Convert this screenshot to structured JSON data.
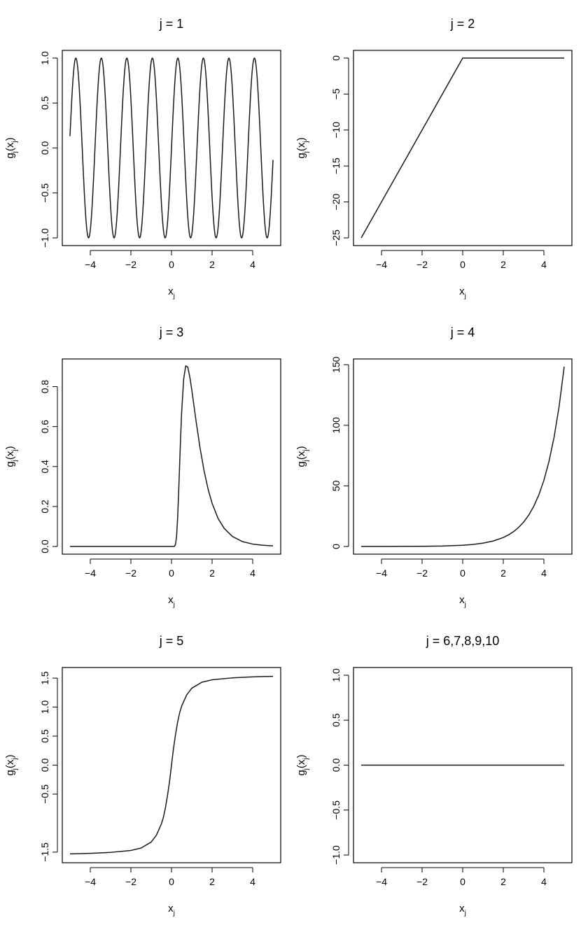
{
  "chart_data": [
    {
      "type": "line",
      "title": "j = 1",
      "xlabel": "xj",
      "ylabel": "gj(xj)",
      "xlabel_parts": {
        "base": "x",
        "sub": "j"
      },
      "ylabel_parts": {
        "base": "g",
        "sub": "j",
        "arg_base": "x",
        "arg_sub": "j"
      },
      "xlim": [
        -5,
        5
      ],
      "ylim": [
        -1,
        1
      ],
      "x_ticks": [
        -4,
        -2,
        0,
        2,
        4
      ],
      "x_tick_labels": [
        "−4",
        "−2",
        "0",
        "2",
        "4"
      ],
      "y_ticks": [
        -1,
        -0.5,
        0,
        0.5,
        1
      ],
      "y_tick_labels": [
        "−1.0",
        "−0.5",
        "0.0",
        "0.5",
        "1.0"
      ],
      "grid": false,
      "series": [
        {
          "x": [
            -5.0,
            -4.9,
            -4.8,
            -4.7,
            -4.6,
            -4.5,
            -4.4,
            -4.3,
            -4.2,
            -4.1,
            -4.0,
            -3.9,
            -3.8,
            -3.7,
            -3.6,
            -3.5,
            -3.4,
            -3.3,
            -3.2,
            -3.1,
            -3.0,
            -2.9,
            -2.8,
            -2.7,
            -2.6,
            -2.5,
            -2.4,
            -2.3,
            -2.2,
            -2.1,
            -2.0,
            -1.9,
            -1.8,
            -1.7,
            -1.6,
            -1.5,
            -1.4,
            -1.3,
            -1.2,
            -1.1,
            -1.0,
            -0.9,
            -0.8,
            -0.7,
            -0.6,
            -0.5,
            -0.4,
            -0.3,
            -0.2,
            -0.1,
            0.0,
            0.1,
            0.2,
            0.3,
            0.4,
            0.5,
            0.6,
            0.7,
            0.8,
            0.9,
            1.0,
            1.1,
            1.2,
            1.3,
            1.4,
            1.5,
            1.6,
            1.7,
            1.8,
            1.9,
            2.0,
            2.1,
            2.2,
            2.3,
            2.4,
            2.5,
            2.6,
            2.7,
            2.8,
            2.9,
            3.0,
            3.1,
            3.2,
            3.3,
            3.4,
            3.5,
            3.6,
            3.7,
            3.8,
            3.9,
            4.0,
            4.1,
            4.2,
            4.3,
            4.4,
            4.5,
            4.6,
            4.7,
            4.8,
            4.9,
            5.0
          ],
          "y": [
            0.132,
            0.58,
            0.909,
            0.99,
            0.794,
            0.392,
            -0.1,
            -0.563,
            -0.898,
            -0.992,
            -0.806,
            -0.426,
            0.074,
            0.549,
            0.891,
            0.993,
            0.813,
            0.414,
            -0.092,
            -0.57,
            -0.903,
            -0.991,
            -0.804,
            -0.406,
            0.101,
            0.579,
            0.907,
            0.99,
            0.797,
            0.398,
            -0.111,
            -0.586,
            -0.911,
            -0.989,
            -0.791,
            -0.389,
            0.12,
            0.594,
            0.915,
            0.988,
            0.785,
            0.381,
            -0.128,
            -0.601,
            -0.919,
            -0.986,
            -0.778,
            -0.373,
            0.137,
            0.608,
            0.0,
            -0.608,
            -0.137,
            0.373,
            0.778,
            0.986,
            0.919,
            0.601,
            0.128,
            -0.381,
            -0.785,
            -0.988,
            -0.915,
            -0.594,
            -0.12,
            0.389,
            0.791,
            0.989,
            0.911,
            0.586,
            0.111,
            -0.398,
            -0.797,
            -0.99,
            -0.907,
            -0.579,
            -0.101,
            0.406,
            0.804,
            0.991,
            0.903,
            0.57,
            0.092,
            -0.414,
            -0.813,
            -0.993,
            -0.891,
            -0.549,
            -0.074,
            0.426,
            0.806,
            0.992,
            0.898,
            0.563,
            0.1,
            -0.392,
            -0.794,
            -0.99,
            -0.909,
            -0.58,
            -0.132
          ]
        }
      ]
    },
    {
      "type": "line",
      "title": "j = 2",
      "xlabel": "xj",
      "ylabel": "gj(xj)",
      "xlabel_parts": {
        "base": "x",
        "sub": "j"
      },
      "ylabel_parts": {
        "base": "g",
        "sub": "j",
        "arg_base": "x",
        "arg_sub": "j"
      },
      "xlim": [
        -5,
        5
      ],
      "ylim": [
        -25,
        0
      ],
      "x_ticks": [
        -4,
        -2,
        0,
        2,
        4
      ],
      "x_tick_labels": [
        "−4",
        "−2",
        "0",
        "2",
        "4"
      ],
      "y_ticks": [
        -25,
        -20,
        -15,
        -10,
        -5,
        0
      ],
      "y_tick_labels": [
        "−25",
        "−20",
        "−15",
        "−10",
        "−5",
        "0"
      ],
      "grid": false,
      "series": [
        {
          "x": [
            -5,
            0,
            5
          ],
          "y": [
            -25,
            0,
            0
          ]
        }
      ]
    },
    {
      "type": "line",
      "title": "j = 3",
      "xlabel": "xj",
      "ylabel": "gj(xj)",
      "xlabel_parts": {
        "base": "x",
        "sub": "j"
      },
      "ylabel_parts": {
        "base": "g",
        "sub": "j",
        "arg_base": "x",
        "arg_sub": "j"
      },
      "xlim": [
        -5,
        5
      ],
      "ylim": [
        0,
        0.9
      ],
      "x_ticks": [
        -4,
        -2,
        0,
        2,
        4
      ],
      "x_tick_labels": [
        "−4",
        "−2",
        "0",
        "2",
        "4"
      ],
      "y_ticks": [
        0,
        0.2,
        0.4,
        0.6,
        0.8
      ],
      "y_tick_labels": [
        "0.0",
        "0.2",
        "0.4",
        "0.6",
        "0.8"
      ],
      "grid": false,
      "series": [
        {
          "x": [
            -5,
            0.0,
            0.1,
            0.15,
            0.2,
            0.25,
            0.3,
            0.35,
            0.4,
            0.45,
            0.5,
            0.6,
            0.7,
            0.8,
            0.9,
            1.0,
            1.2,
            1.4,
            1.6,
            1.8,
            2.0,
            2.3,
            2.6,
            3.0,
            3.5,
            4.0,
            4.5,
            5.0
          ],
          "y": [
            0,
            0,
            0.0,
            0.001,
            0.011,
            0.052,
            0.137,
            0.263,
            0.408,
            0.549,
            0.672,
            0.838,
            0.904,
            0.898,
            0.85,
            0.783,
            0.635,
            0.497,
            0.381,
            0.288,
            0.216,
            0.139,
            0.09,
            0.05,
            0.024,
            0.012,
            0.006,
            0.003
          ]
        }
      ]
    },
    {
      "type": "line",
      "title": "j = 4",
      "xlabel": "xj",
      "ylabel": "gj(xj)",
      "xlabel_parts": {
        "base": "x",
        "sub": "j"
      },
      "ylabel_parts": {
        "base": "g",
        "sub": "j",
        "arg_base": "x",
        "arg_sub": "j"
      },
      "xlim": [
        -5,
        5
      ],
      "ylim": [
        0,
        148.4
      ],
      "x_ticks": [
        -4,
        -2,
        0,
        2,
        4
      ],
      "x_tick_labels": [
        "−4",
        "−2",
        "0",
        "2",
        "4"
      ],
      "y_ticks": [
        0,
        50,
        100,
        150
      ],
      "y_tick_labels": [
        "0",
        "50",
        "100",
        "150"
      ],
      "grid": false,
      "series": [
        {
          "x": [
            -5,
            -4,
            -3,
            -2,
            -1,
            0,
            0.5,
            1,
            1.5,
            2,
            2.25,
            2.5,
            2.75,
            3,
            3.25,
            3.5,
            3.75,
            4,
            4.25,
            4.5,
            4.75,
            5
          ],
          "y": [
            0.007,
            0.018,
            0.05,
            0.135,
            0.368,
            1.0,
            1.649,
            2.718,
            4.482,
            7.389,
            9.488,
            12.18,
            15.64,
            20.09,
            25.79,
            33.12,
            42.52,
            54.6,
            70.11,
            90.02,
            115.58,
            148.41
          ]
        }
      ]
    },
    {
      "type": "line",
      "title": "j = 5",
      "xlabel": "xj",
      "ylabel": "gj(xj)",
      "xlabel_parts": {
        "base": "x",
        "sub": "j"
      },
      "ylabel_parts": {
        "base": "g",
        "sub": "j",
        "arg_base": "x",
        "arg_sub": "j"
      },
      "xlim": [
        -5,
        5
      ],
      "ylim": [
        -1.55,
        1.55
      ],
      "x_ticks": [
        -4,
        -2,
        0,
        2,
        4
      ],
      "x_tick_labels": [
        "−4",
        "−2",
        "0",
        "2",
        "4"
      ],
      "y_ticks": [
        -1.5,
        -0.5,
        0,
        0.5,
        1,
        1.5
      ],
      "y_tick_labels": [
        "−1.5",
        "−0.5",
        "0.0",
        "0.5",
        "1.0",
        "1.5"
      ],
      "grid": false,
      "series": [
        {
          "x": [
            -5,
            -4,
            -3,
            -2,
            -1.5,
            -1,
            -0.75,
            -0.5,
            -0.4,
            -0.3,
            -0.2,
            -0.1,
            -0.05,
            0,
            0.05,
            0.1,
            0.2,
            0.3,
            0.4,
            0.5,
            0.75,
            1,
            1.5,
            2,
            3,
            4,
            5
          ],
          "y": [
            -1.531,
            -1.521,
            -1.504,
            -1.471,
            -1.429,
            -1.326,
            -1.212,
            -1.017,
            -0.9,
            -0.737,
            -0.532,
            -0.291,
            -0.149,
            0,
            0.149,
            0.291,
            0.532,
            0.737,
            0.9,
            1.017,
            1.212,
            1.326,
            1.429,
            1.471,
            1.504,
            1.521,
            1.531
          ]
        }
      ]
    },
    {
      "type": "line",
      "title": "j = 6,7,8,9,10",
      "xlabel": "xj",
      "ylabel": "gj(xj)",
      "xlabel_parts": {
        "base": "x",
        "sub": "j"
      },
      "ylabel_parts": {
        "base": "g",
        "sub": "j",
        "arg_base": "x",
        "arg_sub": "j"
      },
      "xlim": [
        -5,
        5
      ],
      "ylim": [
        -1,
        1
      ],
      "x_ticks": [
        -4,
        -2,
        0,
        2,
        4
      ],
      "x_tick_labels": [
        "−4",
        "−2",
        "0",
        "2",
        "4"
      ],
      "y_ticks": [
        -1,
        -0.5,
        0,
        0.5,
        1
      ],
      "y_tick_labels": [
        "−1.0",
        "−0.5",
        "0.0",
        "0.5",
        "1.0"
      ],
      "grid": false,
      "series": [
        {
          "x": [
            -5,
            5
          ],
          "y": [
            0,
            0
          ]
        }
      ]
    }
  ]
}
